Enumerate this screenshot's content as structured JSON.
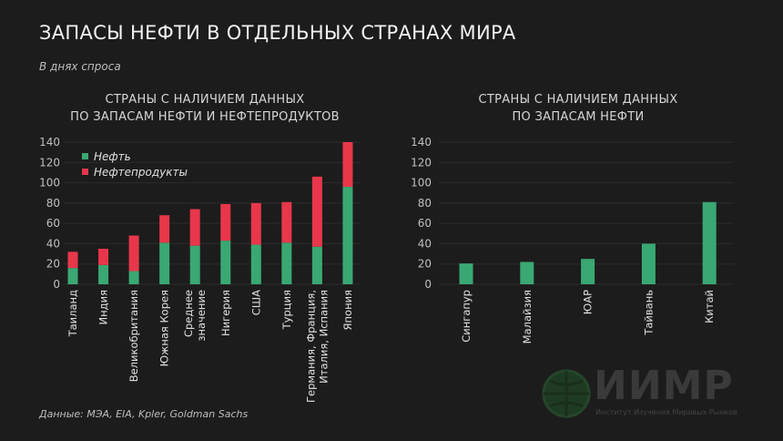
{
  "title": "ЗАПАСЫ НЕФТИ В ОТДЕЛЬНЫХ СТРАНАХ МИРА",
  "subtitle": "В днях спроса",
  "source": "Данные: МЭА, EIA, Kpler, Goldman Sachs",
  "logo": {
    "text": "ИИМР",
    "subtitle": "Институт Изучения Мировых Рынков"
  },
  "colors": {
    "oil": "#3aa873",
    "products": "#e8374a",
    "background": "#1c1c1c",
    "grid": "#2c2c2c"
  },
  "chart_data": [
    {
      "type": "bar",
      "stacked": true,
      "title_lines": [
        "СТРАНЫ С НАЛИЧИЕМ ДАННЫХ",
        "ПО ЗАПАСАМ НЕФТИ И НЕФТЕПРОДУКТОВ"
      ],
      "categories": [
        "Таиланд",
        "Индия",
        "Великобритания",
        "Южная Корея",
        "Среднее значение",
        "Нигерия",
        "США",
        "Турция",
        "Германия, Франция, Италия, Испания",
        "Япония"
      ],
      "category_lines": [
        [
          "Таиланд"
        ],
        [
          "Индия"
        ],
        [
          "Великобритания"
        ],
        [
          "Южная Корея"
        ],
        [
          "Среднее",
          "значение"
        ],
        [
          "Нигерия"
        ],
        [
          "США"
        ],
        [
          "Турция"
        ],
        [
          "Германия, Франция,",
          "Италия, Испания"
        ],
        [
          "Япония"
        ]
      ],
      "series": [
        {
          "name": "Нефть",
          "color": "#3aa873",
          "values": [
            16,
            19,
            13,
            41,
            38,
            43,
            39,
            41,
            37,
            96
          ]
        },
        {
          "name": "Нефтепродукты",
          "color": "#e8374a",
          "values": [
            16,
            16,
            35,
            27,
            36,
            36,
            41,
            40,
            69,
            44
          ]
        }
      ],
      "yticks": [
        0,
        20,
        40,
        60,
        80,
        100,
        120,
        140
      ],
      "ylim": [
        0,
        140
      ],
      "grid": true,
      "legend": "top-left"
    },
    {
      "type": "bar",
      "title_lines": [
        "СТРАНЫ С НАЛИЧИЕМ ДАННЫХ",
        "ПО ЗАПАСАМ НЕФТИ"
      ],
      "categories": [
        "Сингапур",
        "Малайзия",
        "ЮАР",
        "Тайвань",
        "Китай"
      ],
      "category_lines": [
        [
          "Сингапур"
        ],
        [
          "Малайзия"
        ],
        [
          "ЮАР"
        ],
        [
          "Тайвань"
        ],
        [
          "Китай"
        ]
      ],
      "series": [
        {
          "color": "#3aa873",
          "values": [
            20.5,
            22,
            25,
            40,
            81
          ]
        }
      ],
      "yticks": [
        0,
        20,
        40,
        60,
        80,
        100,
        120,
        140
      ],
      "ylim": [
        0,
        140
      ],
      "grid": true
    }
  ]
}
